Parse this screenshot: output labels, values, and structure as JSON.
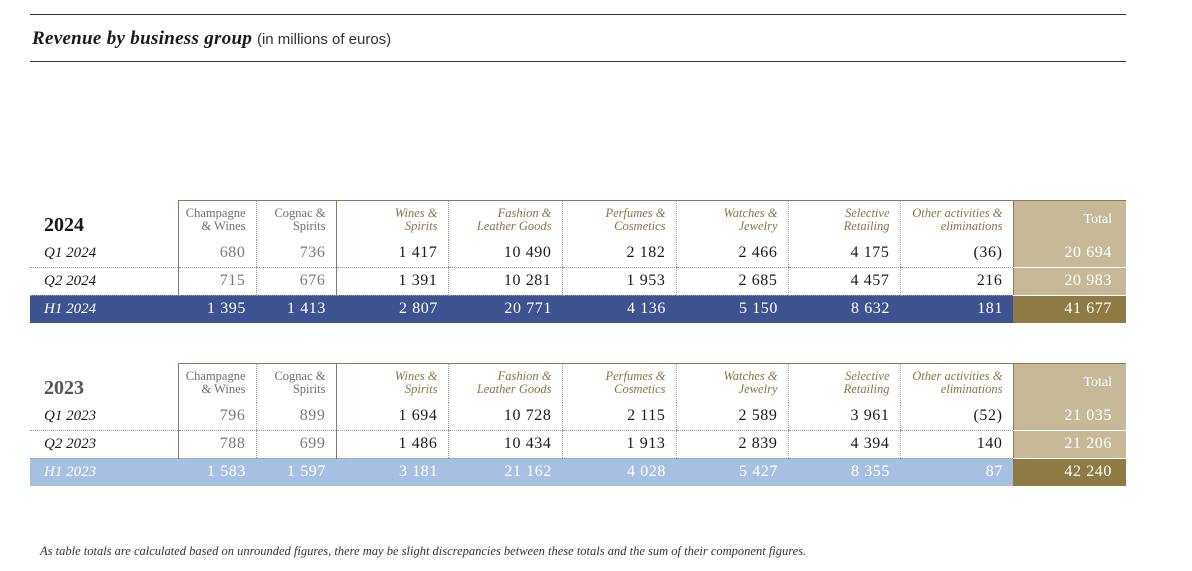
{
  "title": "Revenue by business group",
  "subtitle": "(in millions of euros)",
  "headers": {
    "champagne_wines": [
      "Champagne",
      "& Wines"
    ],
    "cognac_spirits": [
      "Cognac &",
      "Spirits"
    ],
    "wines_spirits": [
      "Wines &",
      "Spirits"
    ],
    "fashion_leather": [
      "Fashion &",
      "Leather Goods"
    ],
    "perfumes_cosmetics": [
      "Perfumes &",
      "Cosmetics"
    ],
    "watches_jewelry": [
      "Watches &",
      "Jewelry"
    ],
    "selective_retailing": [
      "Selective",
      "Retailing"
    ],
    "other_activities": [
      "Other activities &",
      "eliminations"
    ],
    "total": "Total"
  },
  "tables": [
    {
      "year": "2024",
      "rows": [
        {
          "label": "Q1 2024",
          "values": [
            "680",
            "736",
            "1 417",
            "10 490",
            "2 182",
            "2 466",
            "4 175",
            "(36)",
            "20 694"
          ]
        },
        {
          "label": "Q2 2024",
          "values": [
            "715",
            "676",
            "1 391",
            "10 281",
            "1 953",
            "2 685",
            "4 457",
            "216",
            "20 983"
          ]
        },
        {
          "label": "H1 2024",
          "values": [
            "1 395",
            "1 413",
            "2 807",
            "20 771",
            "4 136",
            "5 150",
            "8 632",
            "181",
            "41 677"
          ]
        }
      ]
    },
    {
      "year": "2023",
      "rows": [
        {
          "label": "Q1 2023",
          "values": [
            "796",
            "899",
            "1 694",
            "10 728",
            "2 115",
            "2 589",
            "3 961",
            "(52)",
            "21 035"
          ]
        },
        {
          "label": "Q2 2023",
          "values": [
            "788",
            "699",
            "1 486",
            "10 434",
            "1 913",
            "2 839",
            "4 394",
            "140",
            "21 206"
          ]
        },
        {
          "label": "H1 2023",
          "values": [
            "1 583",
            "1 597",
            "3 181",
            "21 162",
            "4 028",
            "5 427",
            "8 355",
            "87",
            "42 240"
          ]
        }
      ]
    }
  ],
  "colors": {
    "h1_2024_bar": "#3e5291",
    "h1_2023_bar": "#a7c0e1",
    "total_column": "#c7b998",
    "total_summary": "#8e7a45",
    "segment_header_gold": "#8a7548"
  },
  "footnote": "As table totals are calculated based on unrounded figures, there may be slight discrepancies between these totals and the sum of their component figures."
}
